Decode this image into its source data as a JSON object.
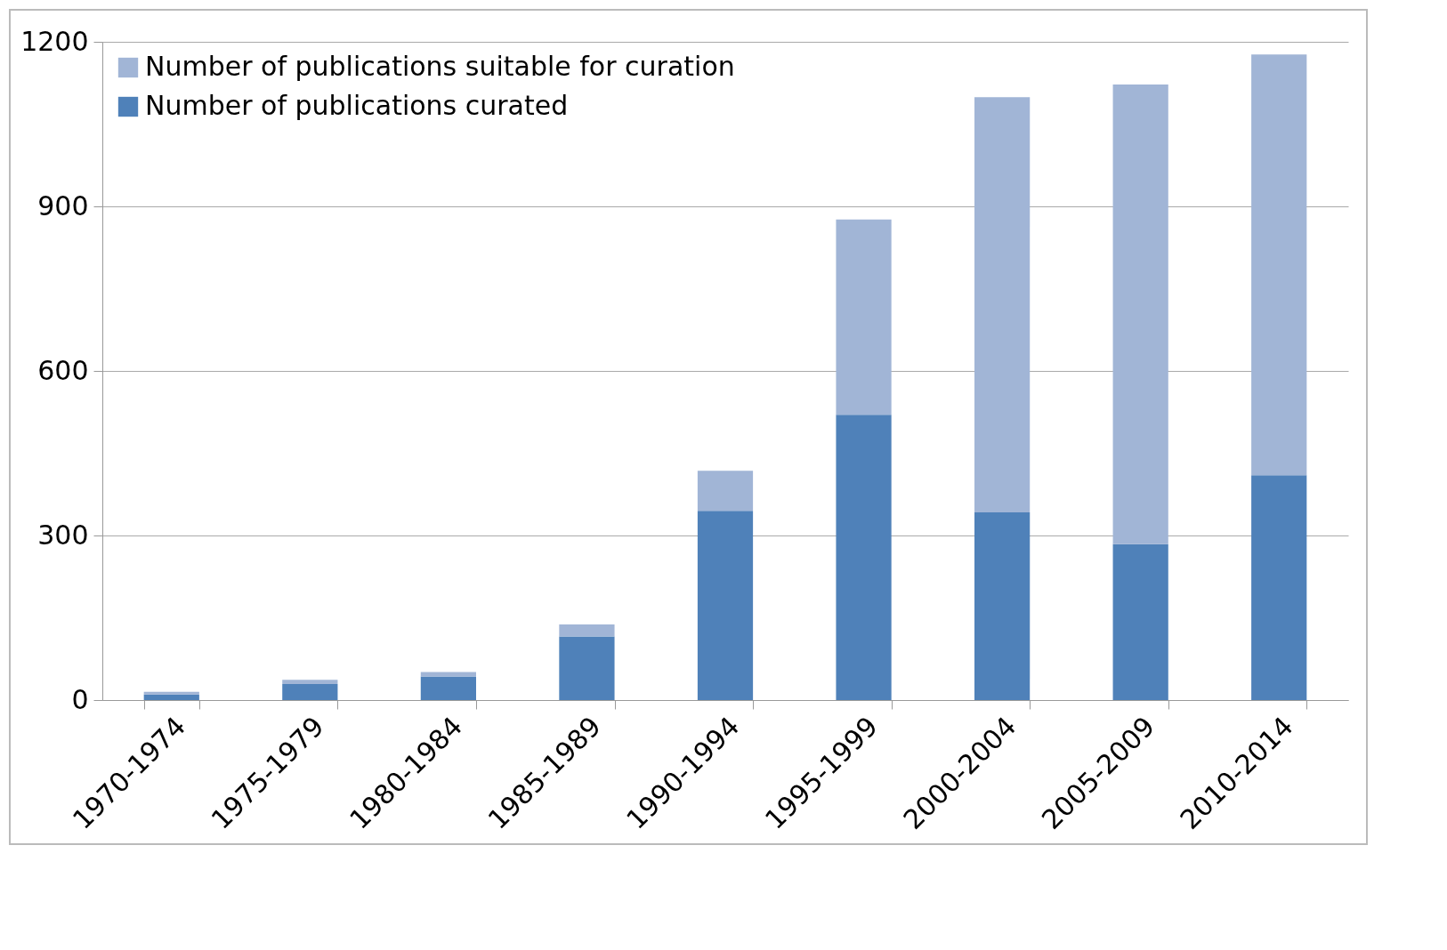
{
  "chart_data": {
    "type": "bar",
    "stacked": true,
    "categories": [
      "1970-1974",
      "1975-1979",
      "1980-1984",
      "1985-1989",
      "1990-1994",
      "1995-1999",
      "2000-2004",
      "2005-2009",
      "2010-2014"
    ],
    "series": [
      {
        "name": "Number of publications curated",
        "color": "#4f81b9",
        "values": [
          10,
          29,
          43,
          116,
          345,
          520,
          342,
          284,
          410
        ]
      },
      {
        "name": "Number of publications suitable for curation",
        "color": "#a1b5d6",
        "values": [
          5,
          8,
          8,
          22,
          73,
          356,
          757,
          838,
          767
        ]
      }
    ],
    "ylim": [
      0,
      1200
    ],
    "yticks": [
      0,
      300,
      600,
      900,
      1200
    ],
    "grid": "y",
    "legend": "top left"
  }
}
